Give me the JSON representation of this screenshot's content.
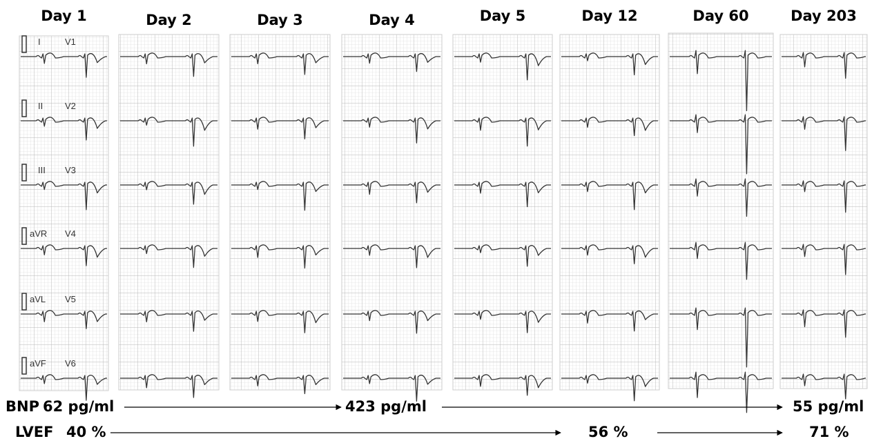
{
  "days": [
    "Day 1",
    "Day 2",
    "Day 3",
    "Day 4",
    "Day 5",
    "Day 12",
    "Day 60",
    "Day 203"
  ],
  "leads": [
    [
      "I",
      "V1"
    ],
    [
      "II",
      "V2"
    ],
    [
      "III",
      "V3"
    ],
    [
      "aVR",
      "V4"
    ],
    [
      "aVL",
      "V5"
    ],
    [
      "aVF",
      "V6"
    ]
  ],
  "bnp": {
    "label": "BNP",
    "values": [
      "62 pg/ml",
      "423 pg/ml",
      "55 pg/ml"
    ]
  },
  "lvef": {
    "label": "LVEF",
    "values": [
      "40 %",
      "56 %",
      "71 %"
    ]
  }
}
